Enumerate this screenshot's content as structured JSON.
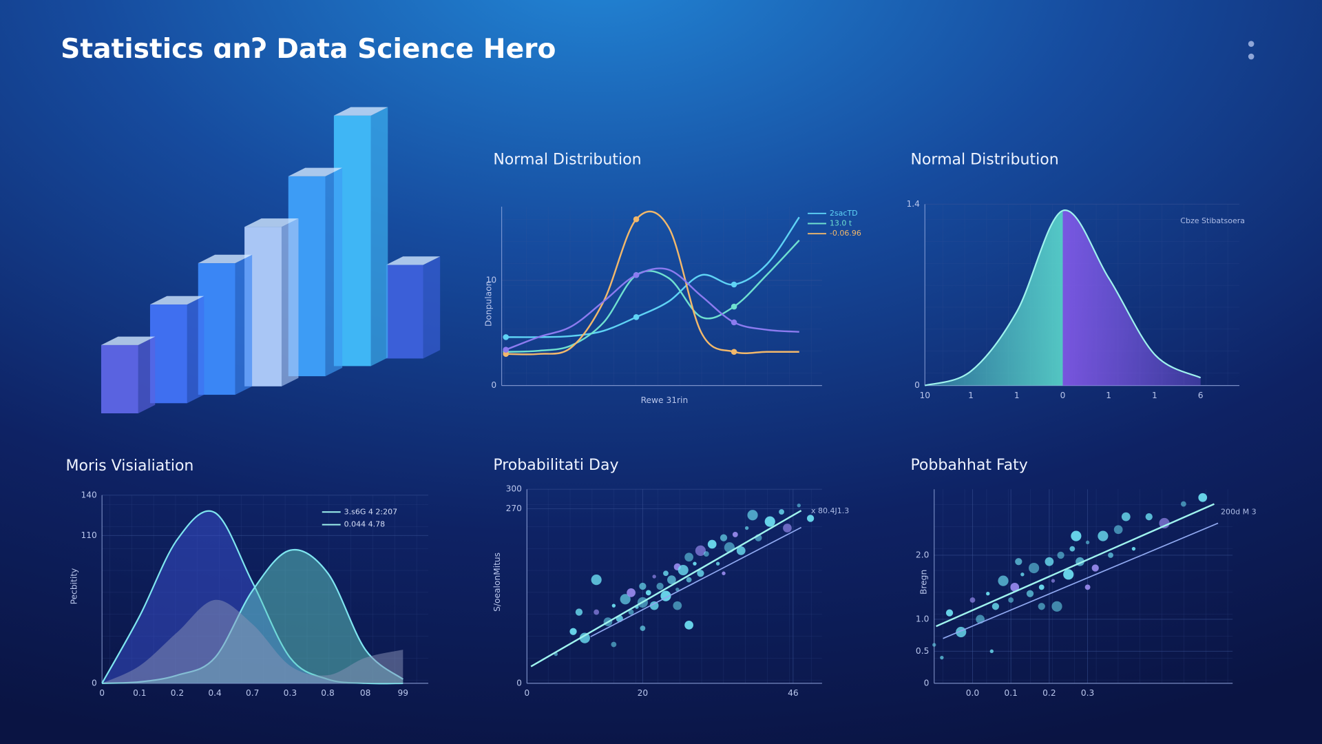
{
  "header": {
    "title": "Statistics ɑnʔ Data Science Hero"
  },
  "chart_data": [
    {
      "type": "bar3d",
      "values": [
        2.7,
        3.9,
        5.2,
        6.3,
        7.9,
        9.9,
        3.7
      ],
      "colors": [
        "#5a63e0",
        "#3f6ff0",
        "#3a86f5",
        "#a9c6f5",
        "#3d9cf5",
        "#3fb6f5",
        "#3b5fd8"
      ]
    },
    {
      "type": "line",
      "title": "Normal Distribution",
      "x_label": "Rewe 31rin",
      "y_label": "Donpulaon",
      "x": [
        0,
        1,
        2,
        3,
        4,
        5,
        6,
        7,
        8,
        9
      ],
      "xlim": [
        -0.13,
        9.7
      ],
      "ylim": [
        0,
        17
      ],
      "yticks": [
        0,
        10
      ],
      "grid": true,
      "series": [
        {
          "name": "2sacTD",
          "color": "#5fd3f5",
          "values": [
            4.6,
            4.6,
            4.7,
            5.2,
            6.5,
            8.0,
            10.5,
            9.6,
            11.5,
            16.0
          ]
        },
        {
          "name": "13.0 t",
          "color": "#6fe0d0",
          "values": [
            3.2,
            3.3,
            3.8,
            6.0,
            10.5,
            10.2,
            6.5,
            7.5,
            10.5,
            13.8
          ]
        },
        {
          "name": "-0.06.96",
          "color": "#f2b86b",
          "values": [
            3.0,
            3.0,
            3.6,
            8.0,
            15.8,
            15.0,
            5.0,
            3.2,
            3.2,
            3.2
          ]
        },
        {
          "color": "#8c7bf0",
          "values": [
            3.4,
            4.6,
            5.6,
            8.0,
            10.5,
            11.0,
            8.5,
            6.0,
            5.3,
            5.1
          ]
        }
      ]
    },
    {
      "type": "area",
      "title": "Normal Distribution",
      "annotations": [
        "Cbze Stibatsoera"
      ],
      "categories": [
        "10",
        "1",
        "1",
        "0",
        "1",
        "1",
        "6"
      ],
      "ylim": [
        0,
        1.4
      ],
      "yticks": [
        0,
        1.4
      ],
      "grid": true,
      "series": [
        {
          "color": "#5fe0d0",
          "color2": "#8a5cf0",
          "values": [
            0,
            0.11,
            0.57,
            1.35,
            0.83,
            0.24,
            0.06
          ]
        }
      ]
    },
    {
      "type": "area",
      "title": "Moris Visialiation",
      "y_label": "Pecbitity",
      "categories": [
        "0",
        "0.1",
        "0.2",
        "0.4",
        "0.7",
        "0.3",
        "0.8",
        "08",
        "99"
      ],
      "ylim": [
        0,
        140
      ],
      "yticks": [
        0,
        110,
        140
      ],
      "grid": true,
      "series": [
        {
          "name": "3.s6G 4 2:207",
          "color": "#3a4fd0",
          "values": [
            0,
            50,
            107,
            127,
            75,
            19,
            3,
            0,
            0
          ]
        },
        {
          "name": "0.044 4.78",
          "color": "#5fc9c0",
          "values": [
            0,
            1,
            6,
            19,
            69,
            99,
            82,
            25,
            3
          ]
        },
        {
          "color": "#8a93b8",
          "values": [
            0,
            13,
            38,
            62,
            44,
            13,
            6,
            19,
            25
          ]
        }
      ]
    },
    {
      "type": "scatter",
      "title": "Probabilitati Day",
      "y_label": "S/oealonMitus",
      "annotations": [
        "x 80.4J1.3"
      ],
      "xlim": [
        0,
        51
      ],
      "xticks": [
        0,
        20,
        46
      ],
      "ylim": [
        0,
        300
      ],
      "yticks": [
        0,
        270,
        300
      ],
      "grid": true,
      "color": "#6fe3f5",
      "x": [
        5,
        8,
        10,
        12,
        14,
        15,
        16,
        17,
        18,
        18,
        19,
        20,
        20,
        21,
        22,
        22,
        23,
        24,
        24,
        25,
        26,
        26,
        27,
        28,
        28,
        29,
        30,
        30,
        31,
        32,
        33,
        34,
        35,
        36,
        37,
        38,
        40,
        42,
        44,
        45,
        47,
        49,
        12,
        20,
        26,
        34,
        9,
        39,
        15,
        28
      ],
      "y": [
        45,
        80,
        70,
        110,
        95,
        120,
        100,
        130,
        110,
        140,
        118,
        150,
        125,
        140,
        120,
        165,
        150,
        135,
        170,
        160,
        145,
        180,
        175,
        160,
        195,
        185,
        170,
        205,
        200,
        215,
        185,
        225,
        210,
        230,
        205,
        240,
        225,
        250,
        265,
        240,
        275,
        255,
        160,
        85,
        120,
        170,
        110,
        260,
        60,
        90
      ],
      "trend_lines": [
        {
          "x": [
            0.7,
            47.4
          ],
          "y": [
            26,
            267
          ]
        },
        {
          "x": [
            11,
            47.4
          ],
          "y": [
            72,
            241
          ]
        }
      ]
    },
    {
      "type": "scatter",
      "title": "Pobbahhat Faty",
      "y_label": "Bregn",
      "annotations": [
        "200d M 3"
      ],
      "xlim": [
        -0.1,
        0.678
      ],
      "xticks": [
        {
          "value": 0,
          "label": "0.0"
        },
        0.1,
        0.2,
        0.3
      ],
      "ylim": [
        0,
        3.03
      ],
      "yticks": [
        0,
        0.5,
        {
          "value": 1,
          "label": "1.0"
        },
        {
          "value": 2,
          "label": "2.0"
        }
      ],
      "grid": true,
      "color": "#6fe3f5",
      "x": [
        -0.1,
        -0.06,
        -0.03,
        0,
        0.02,
        0.04,
        0.06,
        0.08,
        0.1,
        0.11,
        0.13,
        0.15,
        0.16,
        0.18,
        0.2,
        0.21,
        0.23,
        0.25,
        0.26,
        0.28,
        0.3,
        0.32,
        0.34,
        0.36,
        0.38,
        0.42,
        0.46,
        0.5,
        0.55,
        0.6,
        0.05,
        0.12,
        0.22,
        0.3,
        0.4,
        -0.08,
        0.18,
        0.27
      ],
      "y": [
        0.6,
        1.1,
        0.8,
        1.3,
        1.0,
        1.4,
        1.2,
        1.6,
        1.3,
        1.5,
        1.7,
        1.4,
        1.8,
        1.5,
        1.9,
        1.6,
        2.0,
        1.7,
        2.1,
        1.9,
        2.2,
        1.8,
        2.3,
        2.0,
        2.4,
        2.1,
        2.6,
        2.5,
        2.8,
        2.9,
        0.5,
        1.9,
        1.2,
        1.5,
        2.6,
        0.4,
        1.2,
        2.3
      ],
      "trend_lines": [
        {
          "x": [
            -0.095,
            0.63
          ],
          "y": [
            0.89,
            2.8
          ]
        },
        {
          "x": [
            -0.077,
            0.64
          ],
          "y": [
            0.7,
            2.5
          ]
        }
      ]
    }
  ]
}
